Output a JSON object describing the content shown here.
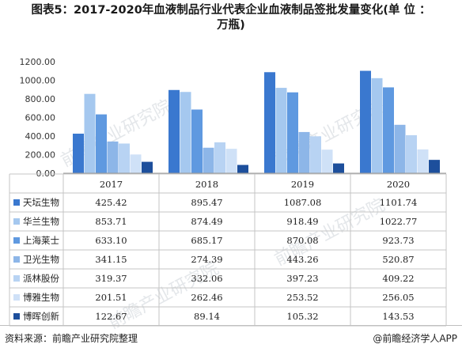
{
  "title_line1": "图表5：2017-2020年血液制品行业代表企业血液制品签批发量变化(单 位 ：",
  "title_line2": "万瓶)",
  "footer": {
    "source": "资料来源：前瞻产业研究院整理",
    "credit": "@前瞻经济学人APP"
  },
  "watermark": "前瞻产业研究院",
  "chart_data": {
    "type": "bar",
    "categories": [
      "2017",
      "2018",
      "2019",
      "2020"
    ],
    "ylim": [
      0,
      1200
    ],
    "yticks": [
      "0.00",
      "200.00",
      "400.00",
      "600.00",
      "800.00",
      "1000.00",
      "1200.00"
    ],
    "grid": false,
    "legend": "table-left",
    "series": [
      {
        "name": "天坛生物",
        "color": "#3a78cf",
        "values": [
          425.42,
          895.47,
          1087.08,
          1101.74
        ],
        "labels": [
          "425.42",
          "895.47",
          "1087.08",
          "1101.74"
        ]
      },
      {
        "name": "华兰生物",
        "color": "#a5c8ef",
        "values": [
          853.71,
          874.49,
          918.49,
          1022.77
        ],
        "labels": [
          "853.71",
          "874.49",
          "918.49",
          "1022.77"
        ]
      },
      {
        "name": "上海莱士",
        "color": "#5f99e0",
        "values": [
          633.1,
          685.17,
          870.08,
          923.73
        ],
        "labels": [
          "633.10",
          "685.17",
          "870.08",
          "923.73"
        ]
      },
      {
        "name": "卫光生物",
        "color": "#8db6e8",
        "values": [
          341.15,
          274.39,
          443.26,
          520.87
        ],
        "labels": [
          "341.15",
          "274.39",
          "443.26",
          "520.87"
        ]
      },
      {
        "name": "派林股份",
        "color": "#b8d3f3",
        "values": [
          319.37,
          332.06,
          397.23,
          409.22
        ],
        "labels": [
          "319.37",
          "332.06",
          "397.23",
          "409.22"
        ]
      },
      {
        "name": "博雅生物",
        "color": "#cfe1f7",
        "values": [
          201.51,
          262.46,
          253.52,
          256.05
        ],
        "labels": [
          "201.51",
          "262.46",
          "253.52",
          "256.05"
        ]
      },
      {
        "name": "博晖创新",
        "color": "#1d4f9c",
        "values": [
          122.67,
          89.14,
          105.32,
          143.53
        ],
        "labels": [
          "122.67",
          "89.14",
          "105.32",
          "143.53"
        ]
      }
    ]
  }
}
